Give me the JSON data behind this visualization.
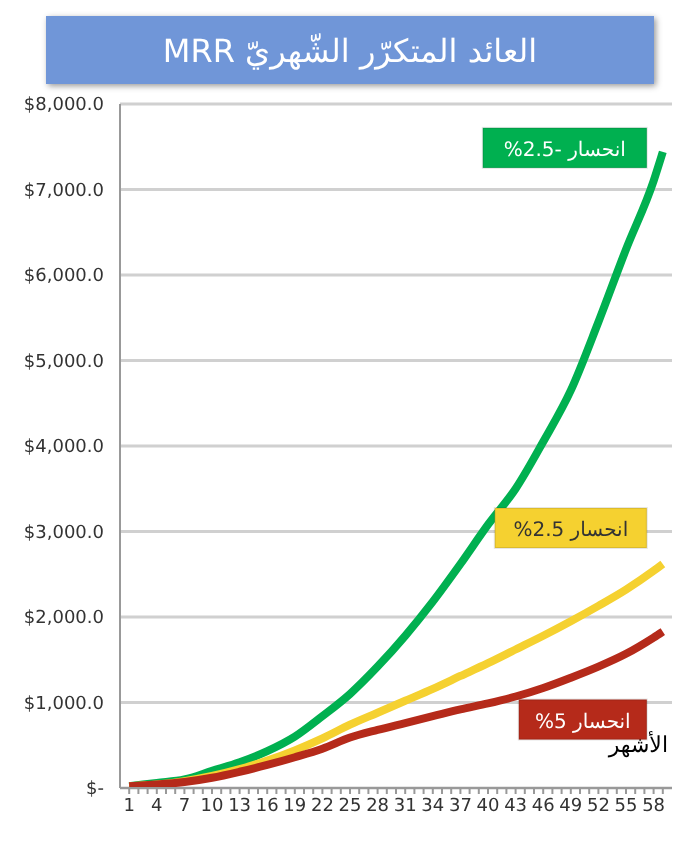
{
  "chart_data": {
    "type": "line",
    "title": "العائد المتكرّر الشّهريّ MRR",
    "xlabel": "الأشهر",
    "x": [
      1,
      4,
      7,
      10,
      13,
      16,
      19,
      22,
      25,
      28,
      31,
      34,
      37,
      40,
      43,
      46,
      49,
      52,
      55,
      58,
      59
    ],
    "series": [
      {
        "name": "انحسار -2.5%",
        "color": "#00b050",
        "values": [
          20,
          60,
          100,
          200,
          300,
          430,
          600,
          840,
          1100,
          1420,
          1780,
          2180,
          2620,
          3080,
          3500,
          4050,
          4650,
          5450,
          6300,
          7100,
          7440
        ]
      },
      {
        "name": "انحسار 2.5%",
        "color": "#f5d130",
        "values": [
          20,
          40,
          80,
          140,
          220,
          320,
          440,
          580,
          740,
          880,
          1020,
          1160,
          1310,
          1460,
          1620,
          1780,
          1950,
          2130,
          2320,
          2540,
          2620
        ]
      },
      {
        "name": "انحسار 5%",
        "color": "#b52a1a",
        "values": [
          20,
          40,
          70,
          120,
          190,
          270,
          360,
          460,
          590,
          680,
          760,
          840,
          920,
          990,
          1070,
          1170,
          1290,
          1420,
          1570,
          1760,
          1830
        ]
      }
    ],
    "xlim": [
      0,
      60
    ],
    "xticks": [
      1,
      {
        "value": 2,
        "label": null
      },
      {
        "value": 3,
        "label": null
      },
      4,
      {
        "value": 5,
        "label": null
      },
      {
        "value": 6,
        "label": null
      },
      7,
      {
        "value": 8,
        "label": null
      },
      {
        "value": 9,
        "label": null
      },
      10,
      {
        "value": 11,
        "label": null
      },
      {
        "value": 12,
        "label": null
      },
      13,
      {
        "value": 14,
        "label": null
      },
      {
        "value": 15,
        "label": null
      },
      16,
      {
        "value": 17,
        "label": null
      },
      {
        "value": 18,
        "label": null
      },
      19,
      {
        "value": 20,
        "label": null
      },
      {
        "value": 21,
        "label": null
      },
      22,
      {
        "value": 23,
        "label": null
      },
      {
        "value": 24,
        "label": null
      },
      25,
      {
        "value": 26,
        "label": null
      },
      {
        "value": 27,
        "label": null
      },
      28,
      {
        "value": 29,
        "label": null
      },
      {
        "value": 30,
        "label": null
      },
      31,
      {
        "value": 32,
        "label": null
      },
      {
        "value": 33,
        "label": null
      },
      34,
      {
        "value": 35,
        "label": null
      },
      {
        "value": 36,
        "label": null
      },
      37,
      {
        "value": 38,
        "label": null
      },
      {
        "value": 39,
        "label": null
      },
      40,
      {
        "value": 41,
        "label": null
      },
      {
        "value": 42,
        "label": null
      },
      43,
      {
        "value": 44,
        "label": null
      },
      {
        "value": 45,
        "label": null
      },
      46,
      {
        "value": 47,
        "label": null
      },
      {
        "value": 48,
        "label": null
      },
      49,
      {
        "value": 50,
        "label": null
      },
      {
        "value": 51,
        "label": null
      },
      52,
      {
        "value": 53,
        "label": null
      },
      {
        "value": 54,
        "label": null
      },
      55,
      {
        "value": 56,
        "label": null
      },
      {
        "value": 57,
        "label": null
      },
      58,
      {
        "value": 59,
        "label": null
      }
    ],
    "ylim": [
      0,
      8000
    ],
    "yticks": [
      {
        "value": 0,
        "label": "$-"
      },
      {
        "value": 1000,
        "label": "$1,000.0"
      },
      {
        "value": 2000,
        "label": "$2,000.0"
      },
      {
        "value": 3000,
        "label": "$3,000.0"
      },
      {
        "value": 4000,
        "label": "$4,000.0"
      },
      {
        "value": 5000,
        "label": "$5,000.0"
      },
      {
        "value": 6000,
        "label": "$6,000.0"
      },
      {
        "value": 7000,
        "label": "$7,000.0"
      },
      {
        "value": 8000,
        "label": "$8,000.0"
      }
    ],
    "grid": "y",
    "legend": false,
    "marker": "none",
    "line_style": "solid"
  }
}
